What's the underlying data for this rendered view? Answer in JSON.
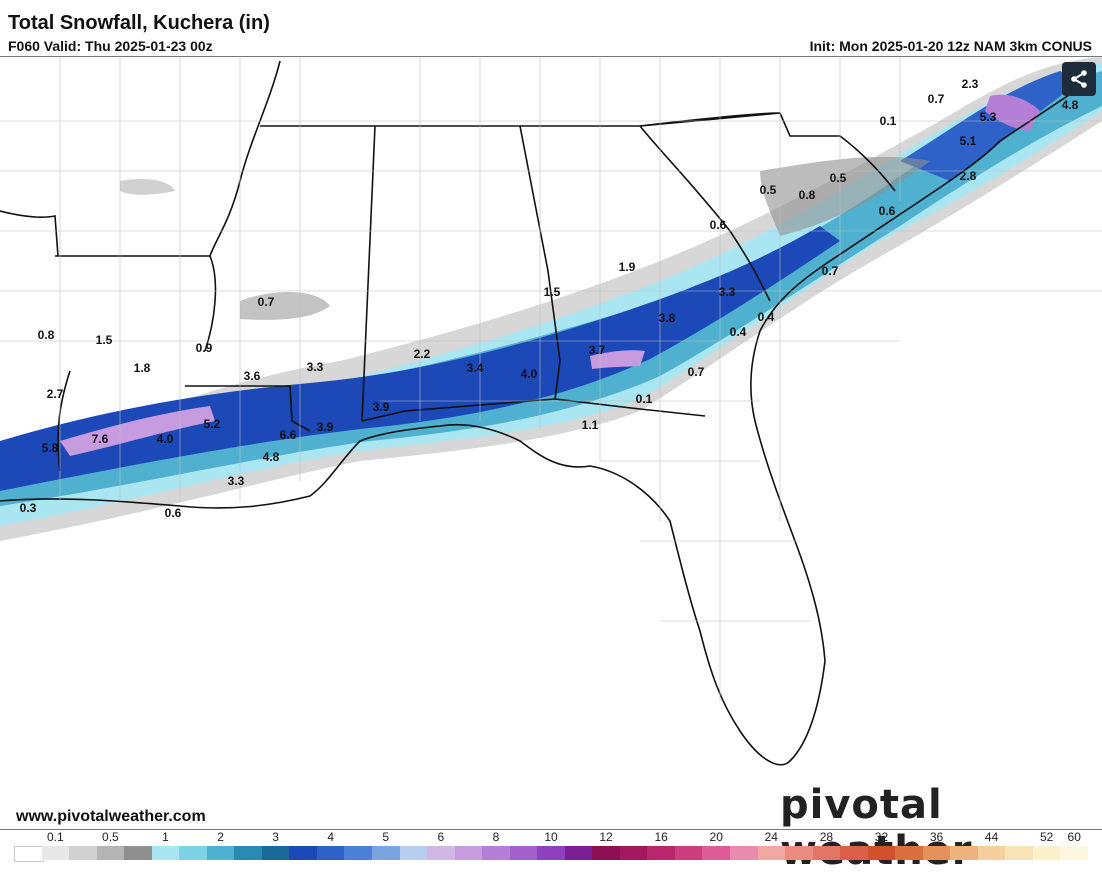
{
  "header": {
    "title": "Total Snowfall, Kuchera (in)",
    "valid": "F060 Valid: Thu 2025-01-23 00z",
    "init": "Init: Mon 2025-01-20 12z NAM 3km CONUS"
  },
  "footer": {
    "website": "www.pivotalweather.com",
    "logo": "pivotal weather"
  },
  "share_icon": "share-icon",
  "map_values": [
    "2.3",
    "0.7",
    "0.1",
    "5.3",
    "4.8",
    "5.1",
    "2.8",
    "0.5",
    "0.8",
    "0.5",
    "0.6",
    "0.6",
    "1.9",
    "0.7",
    "1.5",
    "3.3",
    "3.8",
    "0.4",
    "0.4",
    "3.7",
    "0.7",
    "0.1",
    "1.1",
    "0.7",
    "0.8",
    "1.5",
    "1.8",
    "0.9",
    "3.6",
    "3.3",
    "2.2",
    "3.4",
    "4.0",
    "2.7",
    "5.8",
    "7.6",
    "4.0",
    "5.2",
    "6.6",
    "3.9",
    "3.9",
    "4.8",
    "3.3",
    "0.3",
    "0.6"
  ],
  "legend": {
    "labels": [
      "0.1",
      "0.5",
      "1",
      "2",
      "3",
      "4",
      "5",
      "6",
      "8",
      "10",
      "12",
      "16",
      "20",
      "24",
      "28",
      "32",
      "36",
      "44",
      "52",
      "60"
    ],
    "colors": [
      "#ffffff",
      "#e8e8e8",
      "#d0d0d0",
      "#b4b4b4",
      "#8f8f8f",
      "#a9e6f2",
      "#7dd2e6",
      "#4fb0cf",
      "#2a8bb2",
      "#1a6a99",
      "#1c48b8",
      "#2f62c8",
      "#4c7fd6",
      "#7aa4e0",
      "#b6cff0",
      "#d2b6e6",
      "#c69be0",
      "#b57ed6",
      "#a35fcc",
      "#8f40be",
      "#7a1f94",
      "#8c0f55",
      "#a2175e",
      "#b8266c",
      "#cc3e80",
      "#dd5c98",
      "#e98aae",
      "#f0a8a0",
      "#ec8c80",
      "#e37564",
      "#da5e48",
      "#d2502c",
      "#d96f3c",
      "#e4915a",
      "#eeb27c",
      "#f5d09e",
      "#f9e4b8",
      "#fbf0cc",
      "#fdf7e0"
    ]
  }
}
